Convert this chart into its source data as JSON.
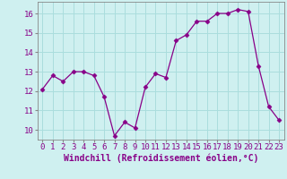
{
  "x": [
    0,
    1,
    2,
    3,
    4,
    5,
    6,
    7,
    8,
    9,
    10,
    11,
    12,
    13,
    14,
    15,
    16,
    17,
    18,
    19,
    20,
    21,
    22,
    23
  ],
  "y": [
    12.1,
    12.8,
    12.5,
    13.0,
    13.0,
    12.8,
    11.7,
    9.7,
    10.4,
    10.1,
    12.2,
    12.9,
    12.7,
    14.6,
    14.9,
    15.6,
    15.6,
    16.0,
    16.0,
    16.2,
    16.1,
    13.3,
    11.2,
    10.5
  ],
  "line_color": "#880088",
  "marker": "D",
  "marker_size": 2.5,
  "bg_color": "#cff0f0",
  "grid_color": "#aadddd",
  "xlabel": "Windchill (Refroidissement éolien,°C)",
  "xlabel_fontsize": 7,
  "tick_fontsize": 6.5,
  "ylim": [
    9.5,
    16.6
  ],
  "xlim": [
    -0.5,
    23.5
  ],
  "yticks": [
    10,
    11,
    12,
    13,
    14,
    15,
    16
  ],
  "xticks": [
    0,
    1,
    2,
    3,
    4,
    5,
    6,
    7,
    8,
    9,
    10,
    11,
    12,
    13,
    14,
    15,
    16,
    17,
    18,
    19,
    20,
    21,
    22,
    23
  ]
}
